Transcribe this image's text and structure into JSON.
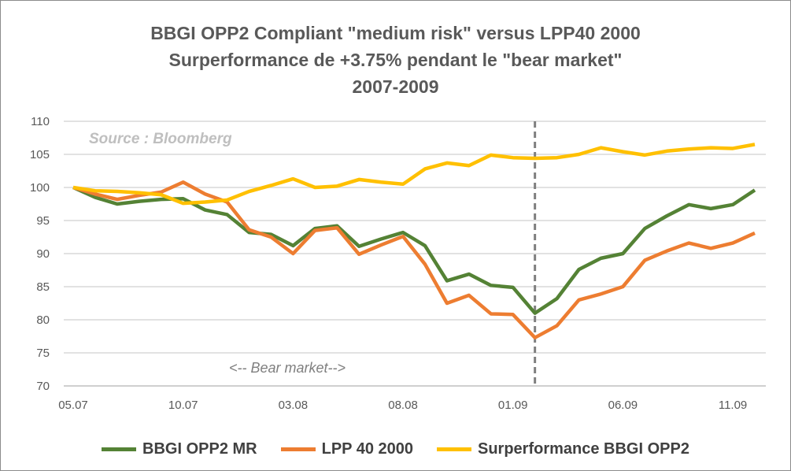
{
  "chart_data": {
    "type": "line",
    "title": [
      "BBGI OPP2 Compliant \"medium risk\" versus LPP40 2000",
      "Surperformance de +3.75% pendant le \"bear market\"",
      "2007-2009"
    ],
    "annotations": {
      "source": "Source : Bloomberg",
      "bear_market": "<-- Bear market-->"
    },
    "ylim": [
      70,
      110
    ],
    "yticks": [
      70,
      75,
      80,
      85,
      90,
      95,
      100,
      105,
      110
    ],
    "grid": true,
    "legend_placement": "bottom",
    "x": [
      "05.07",
      "06.07",
      "07.07",
      "08.07",
      "09.07",
      "10.07",
      "11.07",
      "12.07",
      "01.08",
      "02.08",
      "03.08",
      "04.08",
      "05.08",
      "06.08",
      "07.08",
      "08.08",
      "09.08",
      "10.08",
      "11.08",
      "12.08",
      "01.09",
      "02.09",
      "03.09",
      "04.09",
      "05.09",
      "06.09",
      "07.09",
      "08.09",
      "09.09",
      "10.09",
      "11.09",
      "12.09"
    ],
    "xtick_labels": [
      "05.07",
      "10.07",
      "03.08",
      "08.08",
      "01.09",
      "06.09",
      "11.09"
    ],
    "vertical_marker": "02.09",
    "series": [
      {
        "name": "BBGI OPP2 MR",
        "color": "#548235",
        "values": [
          100,
          98.5,
          97.5,
          97.9,
          98.2,
          98.3,
          96.6,
          95.9,
          93.2,
          92.9,
          91.2,
          93.8,
          94.2,
          91.1,
          92.2,
          93.2,
          91.2,
          85.9,
          86.9,
          85.2,
          84.9,
          81.0,
          83.2,
          87.6,
          89.3,
          90.0,
          93.8,
          95.7,
          97.4,
          96.8,
          97.4,
          99.6
        ]
      },
      {
        "name": "LPP 40 2000",
        "color": "#ED7D31",
        "values": [
          100,
          99.0,
          98.2,
          98.8,
          99.3,
          100.8,
          99.0,
          97.8,
          93.6,
          92.5,
          90.0,
          93.5,
          93.9,
          89.9,
          91.3,
          92.6,
          88.4,
          82.5,
          83.7,
          80.9,
          80.8,
          77.3,
          79.1,
          83.0,
          83.9,
          85.0,
          89.0,
          90.4,
          91.6,
          90.8,
          91.6,
          93.1
        ]
      },
      {
        "name": "Surperformance BBGI OPP2",
        "color": "#FFC000",
        "values": [
          100,
          99.5,
          99.4,
          99.2,
          98.9,
          97.6,
          97.8,
          98.1,
          99.4,
          100.3,
          101.3,
          100.0,
          100.2,
          101.2,
          100.8,
          100.5,
          102.8,
          103.7,
          103.3,
          104.9,
          104.5,
          104.4,
          104.5,
          105.0,
          106.0,
          105.4,
          104.9,
          105.5,
          105.8,
          106.0,
          105.9,
          106.5
        ]
      }
    ]
  }
}
